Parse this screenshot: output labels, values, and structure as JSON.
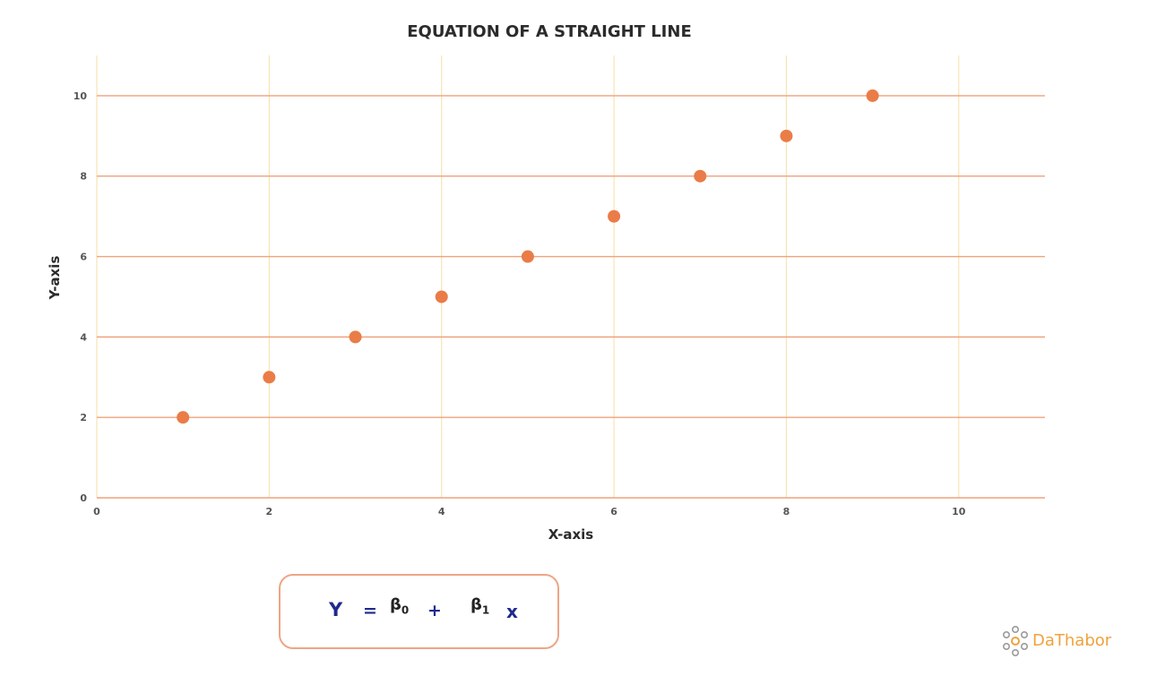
{
  "chart_data": {
    "type": "scatter",
    "title": "EQUATION OF A STRAIGHT LINE",
    "xlabel": "X-axis",
    "ylabel": "Y-axis",
    "xlim": [
      0,
      11
    ],
    "ylim": [
      0,
      11
    ],
    "xticks": [
      "0",
      "2",
      "4",
      "6",
      "8",
      "10"
    ],
    "yticks": [
      "0",
      "2",
      "4",
      "6",
      "8",
      "10"
    ],
    "grid": true,
    "points": [
      {
        "x": 1,
        "y": 2
      },
      {
        "x": 2,
        "y": 3
      },
      {
        "x": 3,
        "y": 4
      },
      {
        "x": 4,
        "y": 5
      },
      {
        "x": 5,
        "y": 6
      },
      {
        "x": 6,
        "y": 7
      },
      {
        "x": 7,
        "y": 8
      },
      {
        "x": 8,
        "y": 9
      },
      {
        "x": 9,
        "y": 10
      }
    ]
  },
  "formula": {
    "y": "Y",
    "equals": "=",
    "beta": "β",
    "beta0_sub": "0",
    "plus": "+",
    "beta1_sub": "1",
    "x": "x"
  },
  "logo": {
    "text": "DaThabor"
  },
  "colors": {
    "point": "#ea7c47",
    "h_grid": "#f0a27c",
    "v_grid": "#f8e3b4",
    "formula_text": "#1f2a8c",
    "formula_border": "#eea587",
    "logo": "#f0a23c"
  }
}
